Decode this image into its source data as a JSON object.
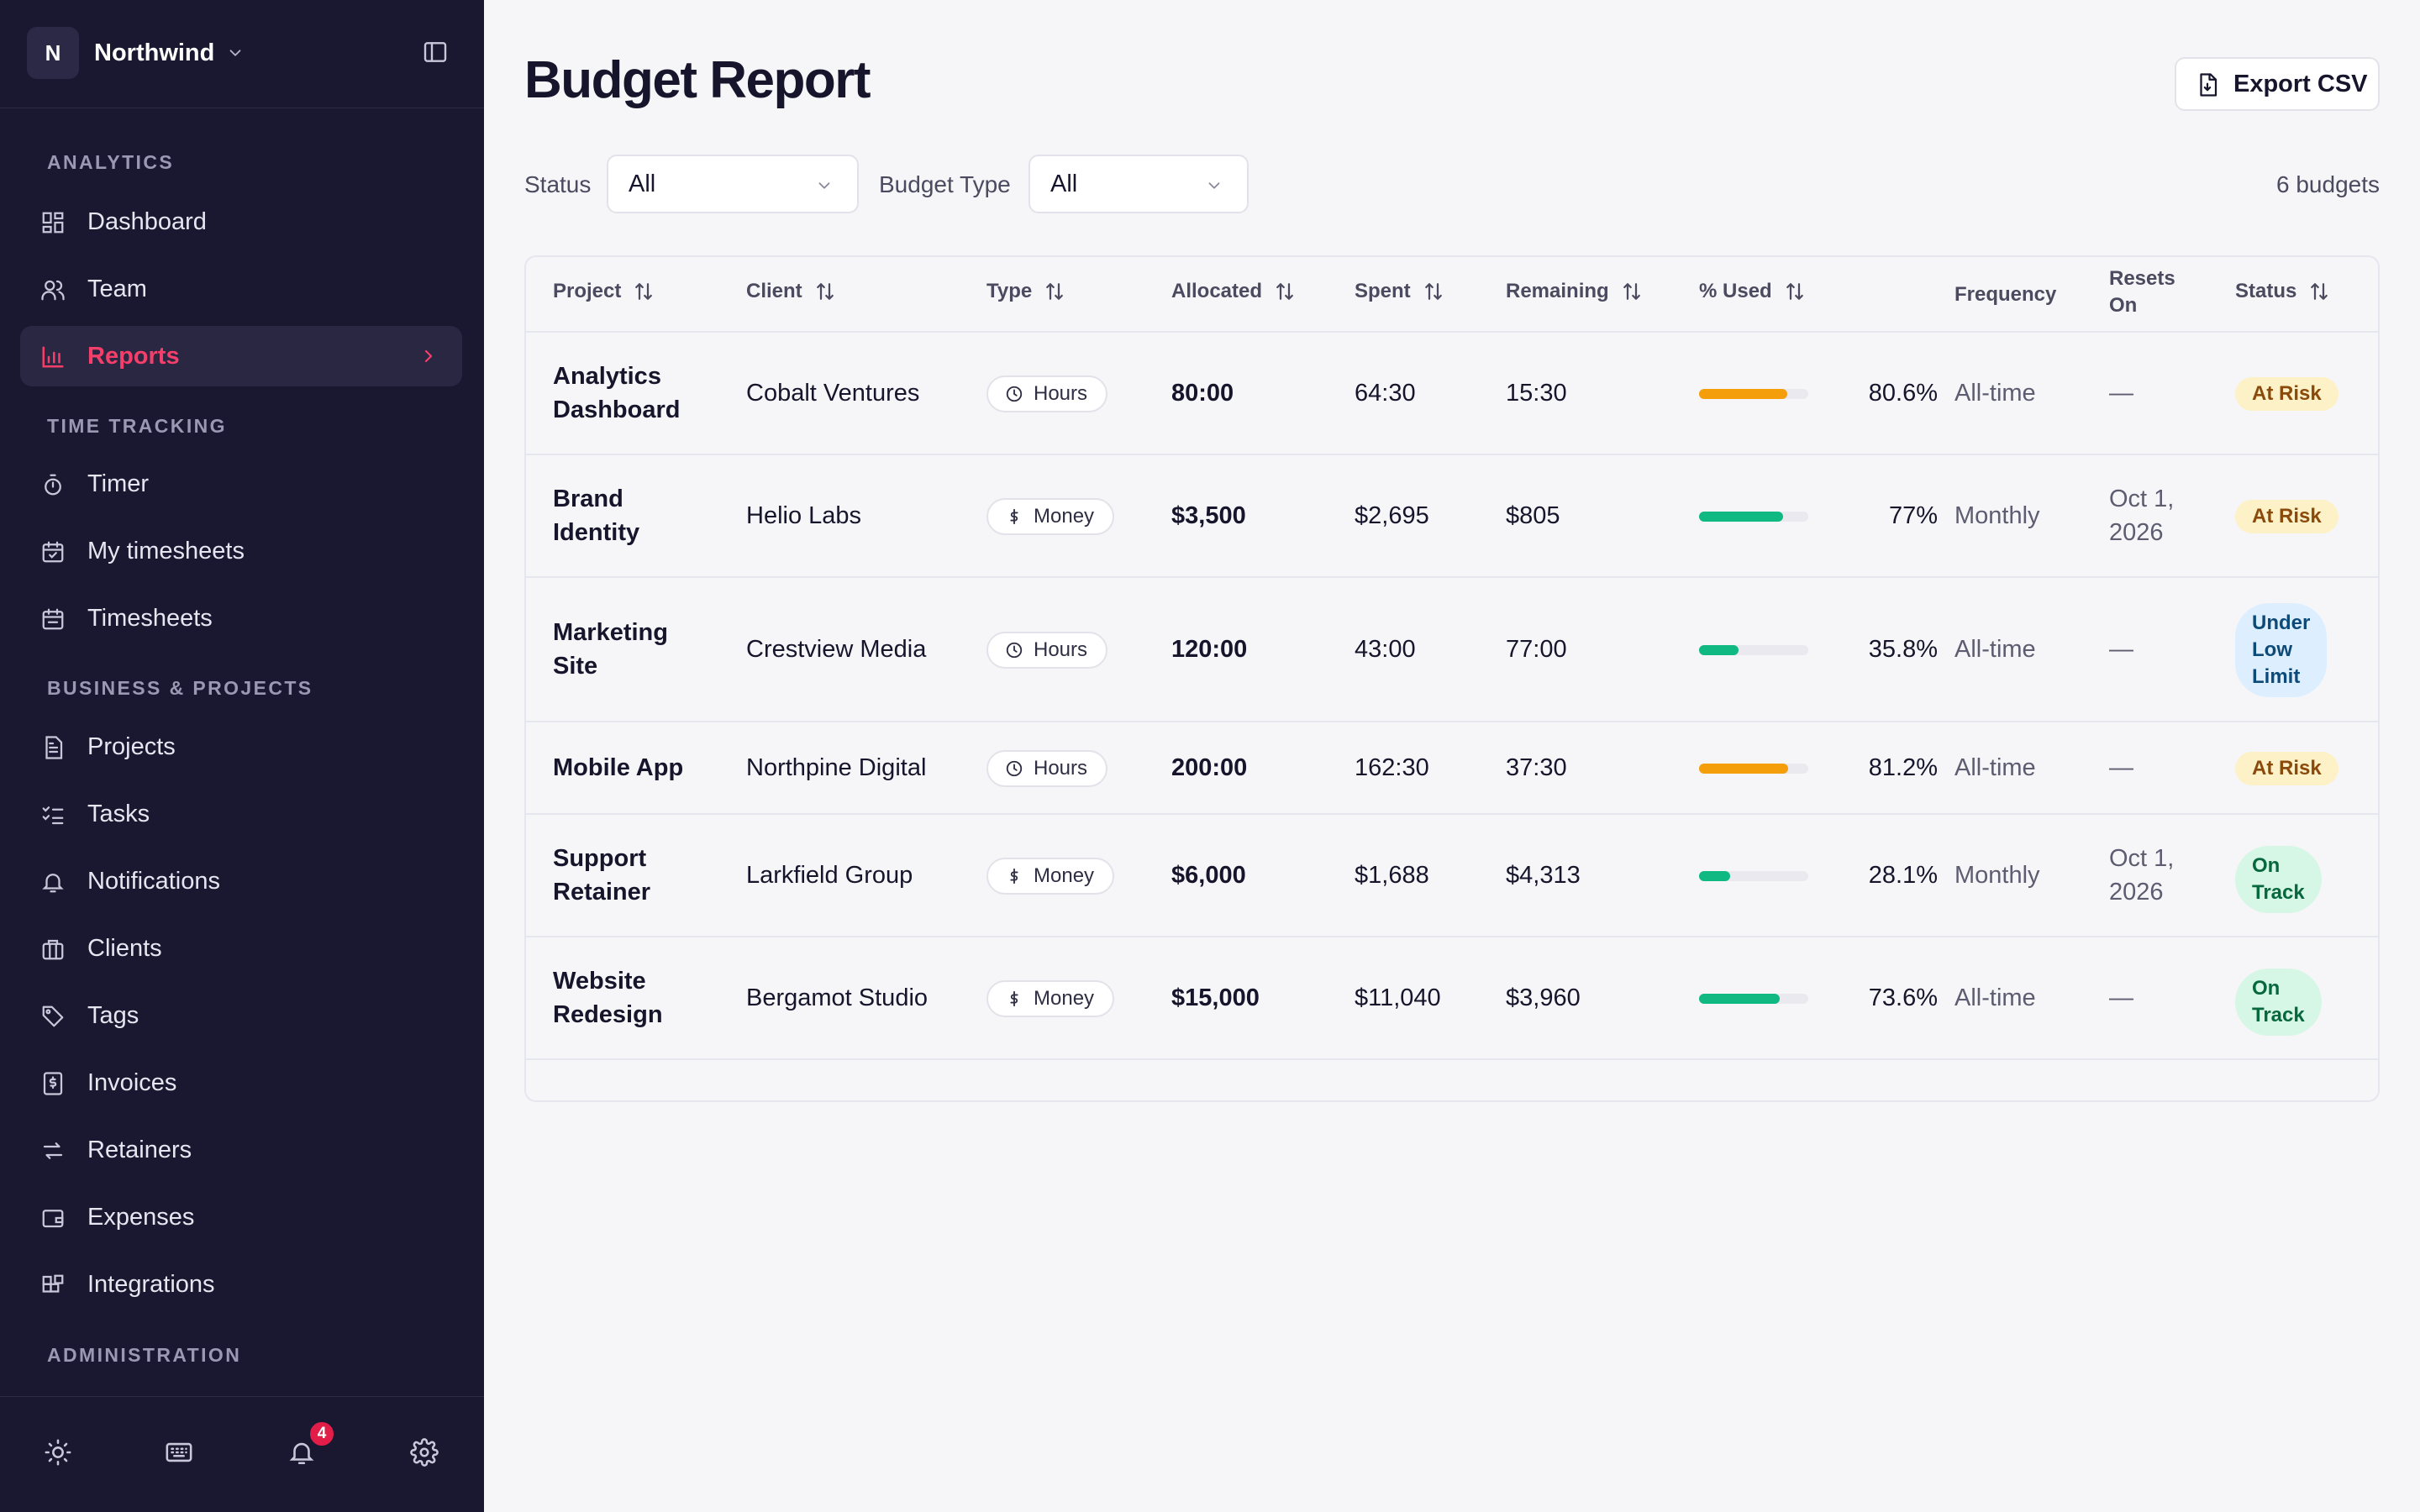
{
  "sidebar": {
    "workspace": {
      "initial": "N",
      "name": "Northwind"
    },
    "sections": {
      "analytics": "ANALYTICS",
      "time_tracking": "TIME TRACKING",
      "business": "BUSINESS & PROJECTS",
      "administration": "ADMINISTRATION"
    },
    "items": {
      "dashboard": "Dashboard",
      "team": "Team",
      "reports": "Reports",
      "timer": "Timer",
      "my_timesheets": "My timesheets",
      "timesheets": "Timesheets",
      "projects": "Projects",
      "tasks": "Tasks",
      "notifications": "Notifications",
      "clients": "Clients",
      "tags": "Tags",
      "invoices": "Invoices",
      "retainers": "Retainers",
      "expenses": "Expenses",
      "integrations": "Integrations"
    },
    "notification_count": "4"
  },
  "page": {
    "title": "Budget Report",
    "export_label": "Export CSV",
    "filters": {
      "status_label": "Status",
      "status_value": "All",
      "type_label": "Budget Type",
      "type_value": "All"
    },
    "count_label": "6 budgets"
  },
  "table": {
    "headers": {
      "project": "Project",
      "client": "Client",
      "type": "Type",
      "allocated": "Allocated",
      "spent": "Spent",
      "remaining": "Remaining",
      "used": "% Used",
      "frequency": "Frequency",
      "resets_on_1": "Resets",
      "resets_on_2": "On",
      "status": "Status"
    },
    "rows": [
      {
        "project_1": "Analytics",
        "project_2": "Dashboard",
        "client": "Cobalt Ventures",
        "type": "Hours",
        "allocated": "80:00",
        "spent": "64:30",
        "remaining": "15:30",
        "used_pct": 80.6,
        "used_label": "80.6%",
        "frequency": "All-time",
        "resets_1": "—",
        "resets_2": "",
        "status": "At Risk"
      },
      {
        "project_1": "Brand",
        "project_2": "Identity",
        "client": "Helio Labs",
        "type": "Money",
        "allocated": "$3,500",
        "spent": "$2,695",
        "remaining": "$805",
        "used_pct": 77,
        "used_label": "77%",
        "frequency": "Monthly",
        "resets_1": "Oct 1,",
        "resets_2": "2026",
        "status": "At Risk"
      },
      {
        "project_1": "Marketing",
        "project_2": "Site",
        "client": "Crestview Media",
        "type": "Hours",
        "allocated": "120:00",
        "spent": "43:00",
        "remaining": "77:00",
        "used_pct": 35.8,
        "used_label": "35.8%",
        "frequency": "All-time",
        "resets_1": "—",
        "resets_2": "",
        "status_1": "Under",
        "status_2": "Low",
        "status_3": "Limit"
      },
      {
        "project_1": "Mobile App",
        "project_2": "",
        "client": "Northpine Digital",
        "type": "Hours",
        "allocated": "200:00",
        "spent": "162:30",
        "remaining": "37:30",
        "used_pct": 81.2,
        "used_label": "81.2%",
        "frequency": "All-time",
        "resets_1": "—",
        "resets_2": "",
        "status": "At Risk"
      },
      {
        "project_1": "Support",
        "project_2": "Retainer",
        "client": "Larkfield Group",
        "type": "Money",
        "allocated": "$6,000",
        "spent": "$1,688",
        "remaining": "$4,313",
        "used_pct": 28.1,
        "used_label": "28.1%",
        "frequency": "Monthly",
        "resets_1": "Oct 1,",
        "resets_2": "2026",
        "status_1": "On",
        "status_2": "Track"
      },
      {
        "project_1": "Website",
        "project_2": "Redesign",
        "client": "Bergamot Studio",
        "type": "Money",
        "allocated": "$15,000",
        "spent": "$11,040",
        "remaining": "$3,960",
        "used_pct": 73.6,
        "used_label": "73.6%",
        "frequency": "All-time",
        "resets_1": "—",
        "resets_2": "",
        "status_1": "On",
        "status_2": "Track"
      }
    ]
  },
  "colors": {
    "accent": "#f43f6a",
    "bar_warning": "#f59e0b",
    "bar_ok": "#10b981"
  }
}
